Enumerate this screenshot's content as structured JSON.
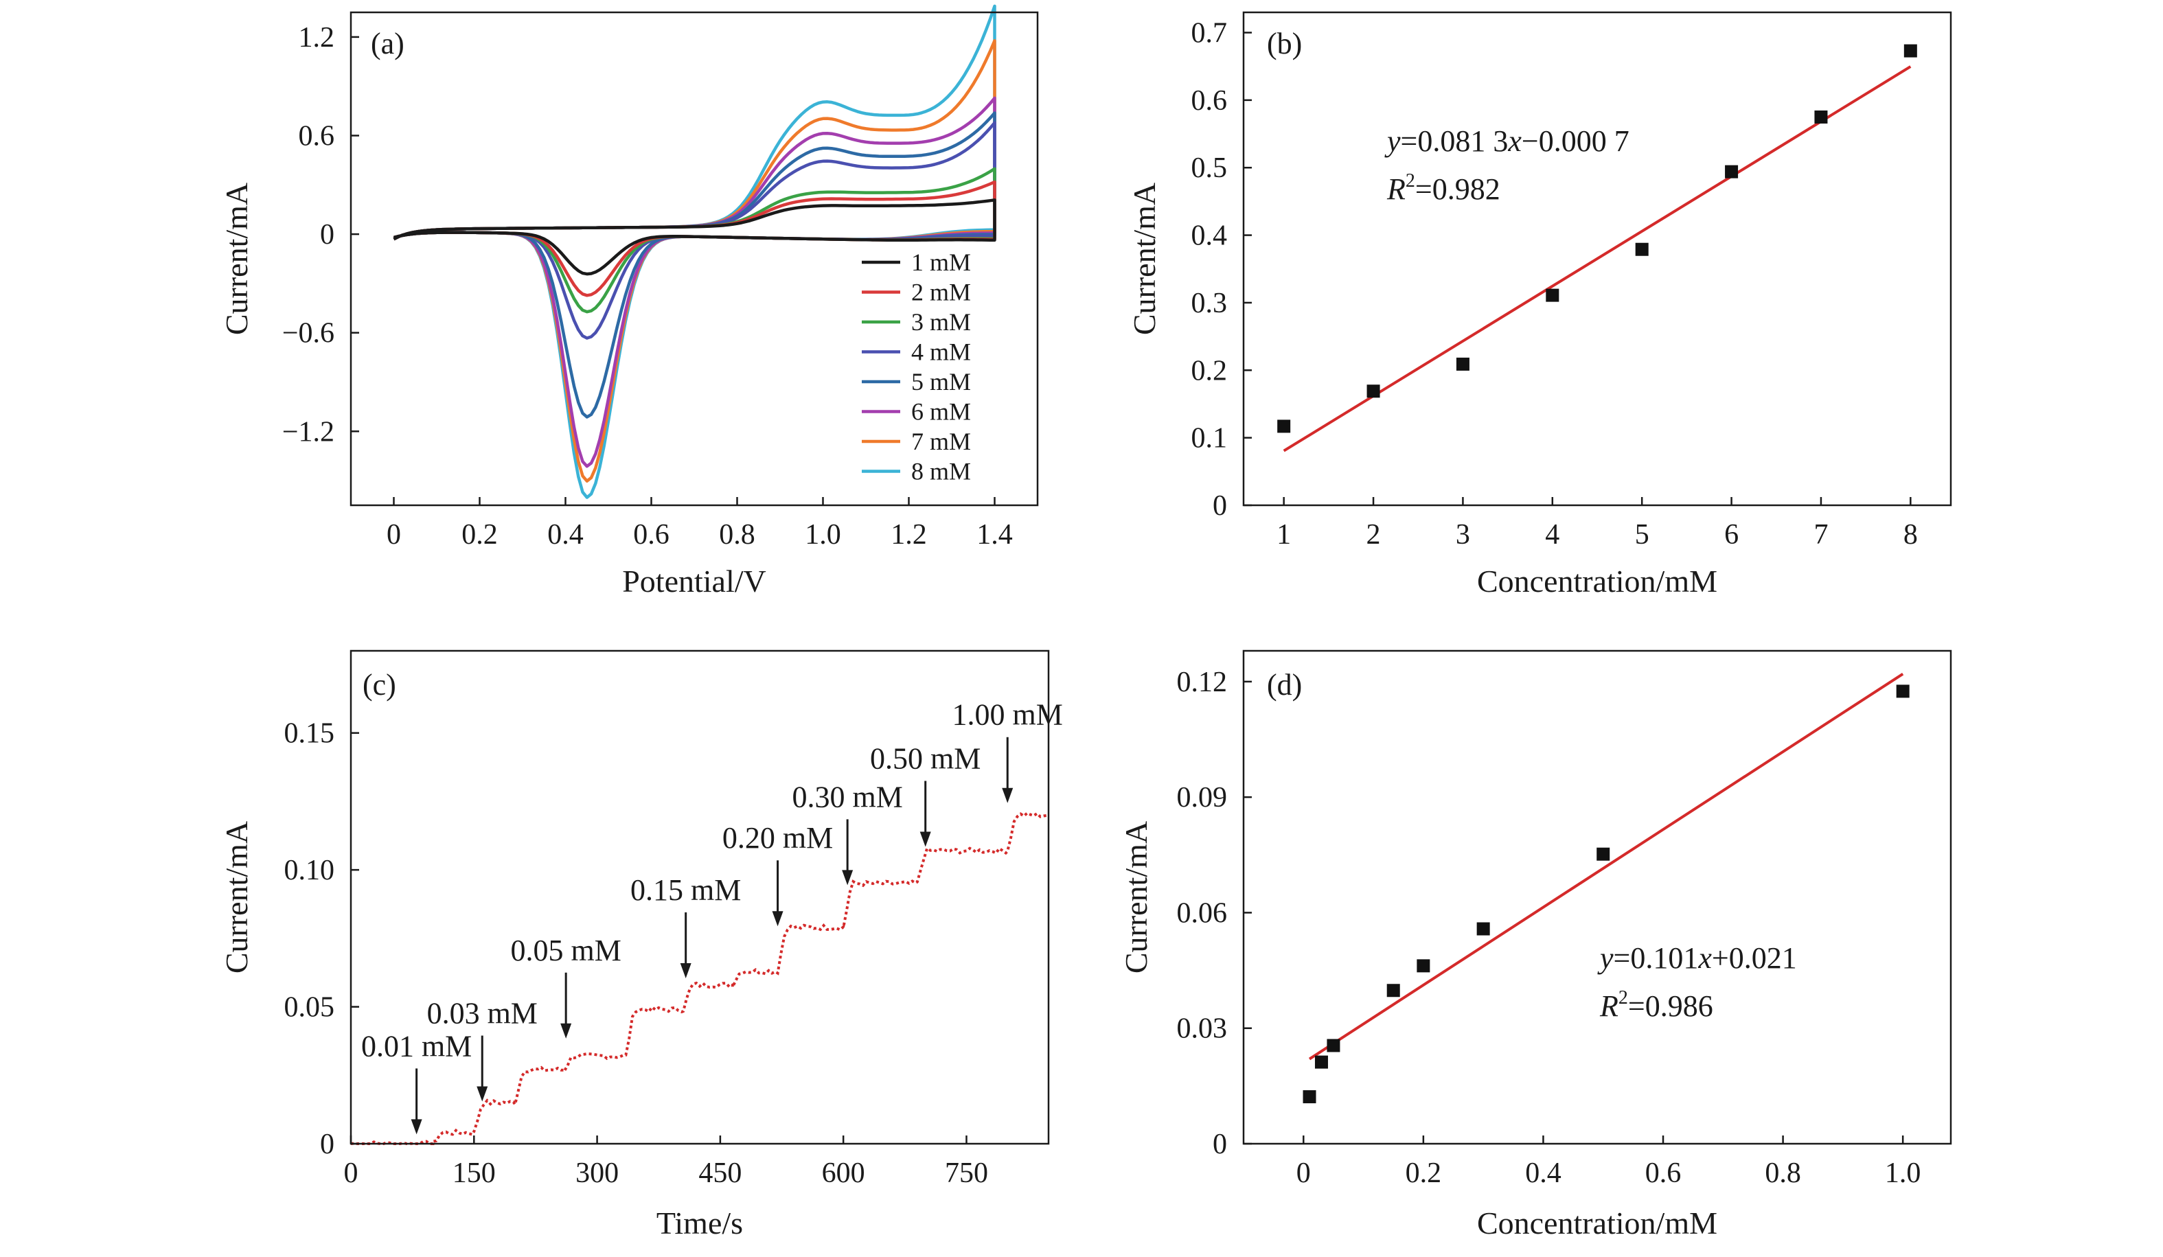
{
  "chart_data": [
    {
      "panel_label": "(a)",
      "type": "line",
      "xlabel": "Potential/V",
      "ylabel": "Current/mA",
      "xlim": [
        -0.1,
        1.5
      ],
      "ylim": [
        -1.65,
        1.35
      ],
      "x_ticks": [
        0,
        0.2,
        0.4,
        0.6,
        0.8,
        1.0,
        1.2,
        1.4
      ],
      "x_tick_labels": [
        "0",
        "0.2",
        "0.4",
        "0.6",
        "0.8",
        "1.0",
        "1.2",
        "1.4"
      ],
      "y_ticks": [
        -1.2,
        -0.6,
        0,
        0.6,
        1.2
      ],
      "y_tick_labels": [
        "−1.2",
        "−0.6",
        "0",
        "0.6",
        "1.2"
      ],
      "grid": false,
      "legend_position": "bottom-right",
      "series": [
        {
          "name": "1 mM",
          "color": "#1a1a1a",
          "cathodic_peak": -0.24,
          "anodic_plateau": 0.12,
          "end_current": 0.19
        },
        {
          "name": "2 mM",
          "color": "#d93a3a",
          "cathodic_peak": -0.37,
          "anodic_plateau": 0.16,
          "end_current": 0.3
        },
        {
          "name": "3 mM",
          "color": "#3aa246",
          "cathodic_peak": -0.47,
          "anodic_plateau": 0.2,
          "end_current": 0.38
        },
        {
          "name": "4 mM",
          "color": "#4a50b0",
          "cathodic_peak": -0.63,
          "anodic_plateau": 0.35,
          "end_current": 0.66
        },
        {
          "name": "5 mM",
          "color": "#2d6aa5",
          "cathodic_peak": -1.11,
          "anodic_plateau": 0.42,
          "end_current": 0.72
        },
        {
          "name": "6 mM",
          "color": "#a33eae",
          "cathodic_peak": -1.41,
          "anodic_plateau": 0.5,
          "end_current": 0.81
        },
        {
          "name": "7 mM",
          "color": "#ef7a2b",
          "cathodic_peak": -1.5,
          "anodic_plateau": 0.58,
          "end_current": 1.16
        },
        {
          "name": "8 mM",
          "color": "#3bb3d6",
          "cathodic_peak": -1.6,
          "anodic_plateau": 0.67,
          "end_current": 1.37
        }
      ]
    },
    {
      "panel_label": "(b)",
      "type": "scatter",
      "xlabel": "Concentration/mM",
      "ylabel": "Current/mA",
      "xlim": [
        0.55,
        8.45
      ],
      "ylim": [
        0,
        0.73
      ],
      "x_ticks": [
        1,
        2,
        3,
        4,
        5,
        6,
        7,
        8
      ],
      "x_tick_labels": [
        "1",
        "2",
        "3",
        "4",
        "5",
        "6",
        "7",
        "8"
      ],
      "y_ticks": [
        0,
        0.1,
        0.2,
        0.3,
        0.4,
        0.5,
        0.6,
        0.7
      ],
      "y_tick_labels": [
        "0",
        "0.1",
        "0.2",
        "0.3",
        "0.4",
        "0.5",
        "0.6",
        "0.7"
      ],
      "grid": false,
      "x": [
        1,
        2,
        3,
        4,
        5,
        6,
        7,
        8
      ],
      "y": [
        0.117,
        0.169,
        0.209,
        0.311,
        0.379,
        0.494,
        0.575,
        0.673
      ],
      "fit": {
        "slope": 0.0813,
        "intercept": -0.0007,
        "x_range": [
          1,
          8
        ],
        "color": "#d42a2a"
      },
      "equation_italic": "y",
      "equation_text": "=0.081 3",
      "equation_italic2": "x",
      "equation_text2": "−0.000 7",
      "r2_italic": "R",
      "r2_sup": "2",
      "r2_text": "=0.982"
    },
    {
      "panel_label": "(c)",
      "type": "line",
      "xlabel": "Time/s",
      "ylabel": "Current/mA",
      "xlim": [
        0,
        850
      ],
      "ylim": [
        0,
        0.18
      ],
      "x_ticks": [
        0,
        150,
        300,
        450,
        600,
        750
      ],
      "x_tick_labels": [
        "0",
        "150",
        "300",
        "450",
        "600",
        "750"
      ],
      "y_ticks": [
        0,
        0.05,
        0.1,
        0.15
      ],
      "y_tick_labels": [
        "0",
        "0.05",
        "0.10",
        "0.15"
      ],
      "grid": false,
      "series_color": "#d42a2a",
      "steps": [
        {
          "time": 0,
          "current": 0.0
        },
        {
          "time": 100,
          "current": 0.004
        },
        {
          "time": 150,
          "current": 0.015
        },
        {
          "time": 200,
          "current": 0.027
        },
        {
          "time": 260,
          "current": 0.032
        },
        {
          "time": 335,
          "current": 0.049
        },
        {
          "time": 405,
          "current": 0.058
        },
        {
          "time": 465,
          "current": 0.063
        },
        {
          "time": 520,
          "current": 0.079
        },
        {
          "time": 600,
          "current": 0.095
        },
        {
          "time": 690,
          "current": 0.107
        },
        {
          "time": 800,
          "current": 0.12
        }
      ],
      "end_time": 850,
      "additions": [
        {
          "label": "0.01 mM",
          "time": 80,
          "label_current": 0.034
        },
        {
          "label": "0.03 mM",
          "time": 160,
          "label_current": 0.046
        },
        {
          "label": "0.05 mM",
          "time": 262,
          "label_current": 0.069
        },
        {
          "label": "0.15 mM",
          "time": 408,
          "label_current": 0.091
        },
        {
          "label": "0.20 mM",
          "time": 520,
          "label_current": 0.11
        },
        {
          "label": "0.30 mM",
          "time": 605,
          "label_current": 0.125
        },
        {
          "label": "0.50 mM",
          "time": 700,
          "label_current": 0.139
        },
        {
          "label": "1.00 mM",
          "time": 800,
          "label_current": 0.155
        }
      ]
    },
    {
      "panel_label": "(d)",
      "type": "scatter",
      "xlabel": "Concentration/mM",
      "ylabel": "Current/mA",
      "xlim": [
        -0.1,
        1.08
      ],
      "ylim": [
        0,
        0.128
      ],
      "x_ticks": [
        0,
        0.2,
        0.4,
        0.6,
        0.8,
        1.0
      ],
      "x_tick_labels": [
        "0",
        "0.2",
        "0.4",
        "0.6",
        "0.8",
        "1.0"
      ],
      "y_ticks": [
        0,
        0.03,
        0.06,
        0.09,
        0.12
      ],
      "y_tick_labels": [
        "0",
        "0.03",
        "0.06",
        "0.09",
        "0.12"
      ],
      "grid": false,
      "x": [
        0.01,
        0.03,
        0.05,
        0.15,
        0.2,
        0.3,
        0.5,
        1.0
      ],
      "y": [
        0.0122,
        0.0212,
        0.0255,
        0.0398,
        0.0462,
        0.0558,
        0.0752,
        0.1175
      ],
      "fit": {
        "slope": 0.101,
        "intercept": 0.021,
        "x_range": [
          0.01,
          1.0
        ],
        "color": "#d42a2a"
      },
      "equation_italic": "y",
      "equation_text": "=0.101",
      "equation_italic2": "x",
      "equation_text2": "+0.021",
      "r2_italic": "R",
      "r2_sup": "2",
      "r2_text": "=0.986"
    }
  ]
}
